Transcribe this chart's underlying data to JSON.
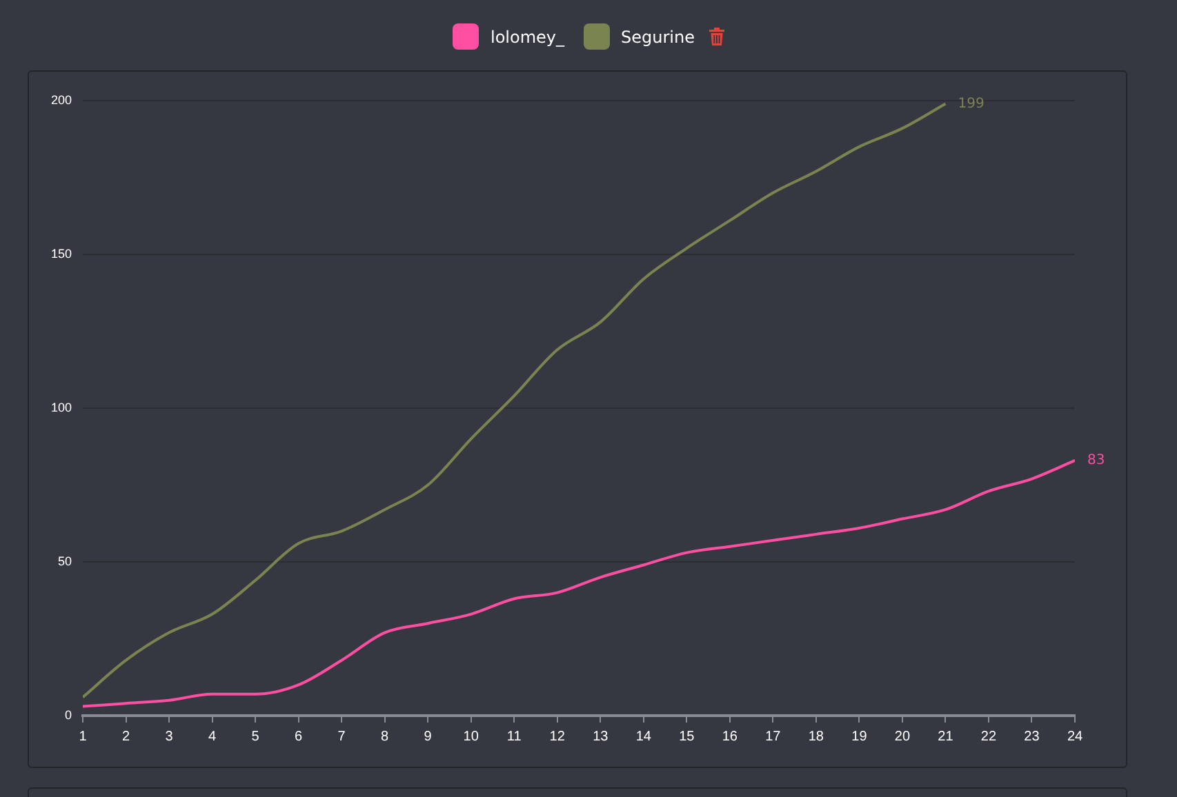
{
  "chart_data": {
    "type": "line",
    "xlim": [
      1,
      24
    ],
    "xticks": [
      1,
      2,
      3,
      4,
      5,
      6,
      7,
      8,
      9,
      10,
      11,
      12,
      13,
      14,
      15,
      16,
      17,
      18,
      19,
      20,
      21,
      22,
      23,
      24
    ],
    "ylim": [
      0,
      200
    ],
    "yticks": [
      0,
      50,
      100,
      150,
      200
    ],
    "grid": "y",
    "legend": "top",
    "marker": "none",
    "series": [
      {
        "name": "lolomey_",
        "color": "#ff4fa3",
        "x": [
          1,
          2,
          3,
          4,
          5,
          6,
          7,
          8,
          9,
          10,
          11,
          12,
          13,
          14,
          15,
          16,
          17,
          18,
          19,
          20,
          21,
          22,
          23,
          24
        ],
        "values": [
          3,
          4,
          5,
          7,
          7,
          10,
          18,
          27,
          30,
          33,
          38,
          40,
          45,
          49,
          53,
          55,
          57,
          59,
          61,
          64,
          67,
          73,
          77,
          83
        ],
        "value_labels": [
          null,
          null,
          null,
          null,
          null,
          null,
          null,
          null,
          null,
          null,
          null,
          null,
          null,
          null,
          null,
          null,
          null,
          null,
          null,
          null,
          null,
          null,
          null,
          "83"
        ]
      },
      {
        "name": "Segurine",
        "color": "#7a8450",
        "x": [
          1,
          2,
          3,
          4,
          5,
          6,
          7,
          8,
          9,
          10,
          11,
          12,
          13,
          14,
          15,
          16,
          17,
          18,
          19,
          20,
          21
        ],
        "values": [
          6,
          18,
          27,
          33,
          44,
          56,
          60,
          67,
          75,
          90,
          104,
          119,
          128,
          142,
          152,
          161,
          170,
          177,
          185,
          191,
          199
        ],
        "value_labels": [
          null,
          null,
          null,
          null,
          null,
          null,
          null,
          null,
          null,
          null,
          null,
          null,
          null,
          null,
          null,
          null,
          null,
          null,
          null,
          null,
          "199"
        ]
      }
    ]
  }
}
